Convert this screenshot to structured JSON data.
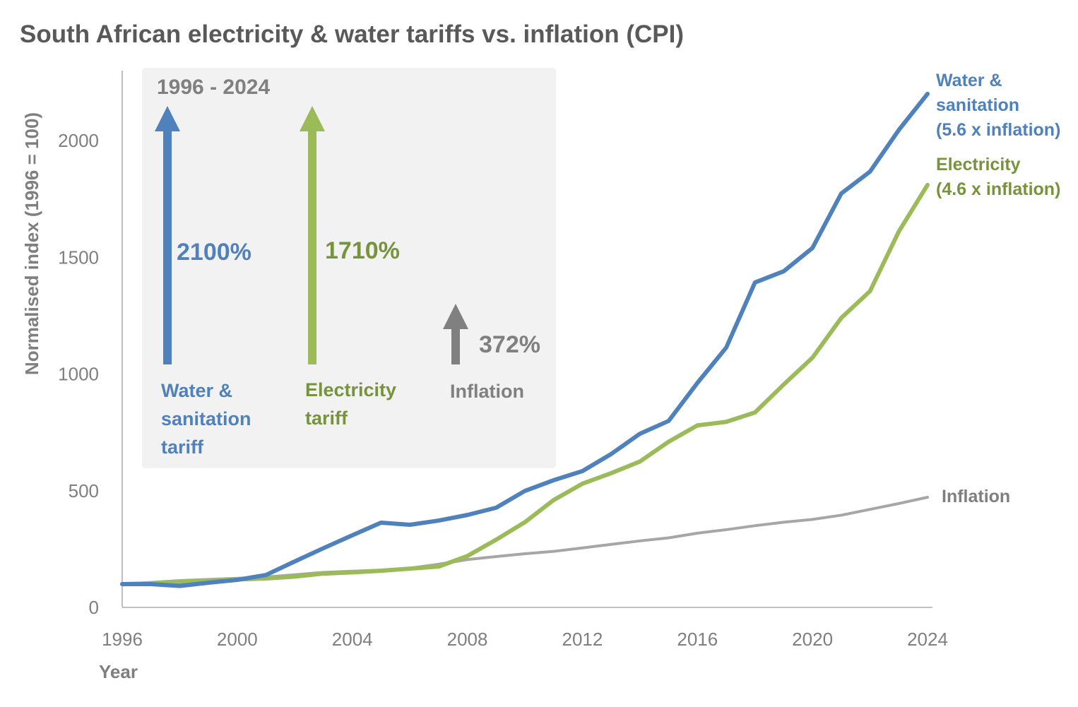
{
  "chart_data": {
    "type": "line",
    "title": "South African electricity & water tariffs vs. inflation (CPI)",
    "xlabel": "Year",
    "ylabel": "Normalised index (1996 = 100)",
    "xlim": [
      1996,
      2024
    ],
    "ylim": [
      0,
      2300
    ],
    "x_ticks": [
      "1996",
      "2000",
      "2004",
      "2008",
      "2012",
      "2016",
      "2020",
      "2024"
    ],
    "y_ticks": [
      "0",
      "500",
      "1000",
      "1500",
      "2000"
    ],
    "grid": false,
    "x": [
      1996,
      1997,
      1998,
      1999,
      2000,
      2001,
      2002,
      2003,
      2004,
      2005,
      2006,
      2007,
      2008,
      2009,
      2010,
      2011,
      2012,
      2013,
      2014,
      2015,
      2016,
      2017,
      2018,
      2019,
      2020,
      2021,
      2022,
      2023,
      2024
    ],
    "series": [
      {
        "name": "Water & sanitation (5.6 x inflation)",
        "name_lines": [
          "Water &",
          "sanitation",
          "(5.6 x inflation)"
        ],
        "color": "#4f81bd",
        "label_color": "#4f81bd",
        "values": [
          100,
          100,
          92,
          106,
          118,
          139,
          197,
          254,
          309,
          363,
          354,
          372,
          396,
          427,
          499,
          545,
          584,
          657,
          744,
          799,
          962,
          1113,
          1392,
          1440,
          1540,
          1773,
          1867,
          2045,
          2200
        ]
      },
      {
        "name": "Electricity (4.6 x inflation)",
        "name_lines": [
          "Electricity",
          "(4.6 x inflation)"
        ],
        "color": "#9bbb59",
        "label_color": "#77933c",
        "values": [
          100,
          103,
          110,
          115,
          120,
          124,
          132,
          145,
          150,
          157,
          166,
          175,
          220,
          290,
          365,
          460,
          530,
          575,
          625,
          710,
          780,
          795,
          835,
          955,
          1070,
          1240,
          1355,
          1610,
          1810
        ]
      },
      {
        "name": "Inflation",
        "name_lines": [
          "Inflation"
        ],
        "color": "#a6a6a6",
        "label_color": "#7f7f7f",
        "values": [
          100,
          107,
          115,
          120,
          125,
          130,
          140,
          150,
          155,
          160,
          168,
          185,
          205,
          218,
          230,
          240,
          255,
          270,
          285,
          298,
          318,
          333,
          350,
          365,
          377,
          395,
          420,
          445,
          472
        ]
      }
    ],
    "inset": {
      "period": "1996 - 2024",
      "items": [
        {
          "value": "2100%",
          "label_lines": [
            "Water &",
            "sanitation",
            "tariff"
          ],
          "color": "#4f81bd",
          "text_color": "#4f81bd"
        },
        {
          "value": "1710%",
          "label_lines": [
            "Electricity",
            "tariff"
          ],
          "color": "#9bbb59",
          "text_color": "#77933c"
        },
        {
          "value": "372%",
          "label_lines": [
            "Inflation"
          ],
          "color": "#808080",
          "text_color": "#808080"
        }
      ]
    }
  }
}
